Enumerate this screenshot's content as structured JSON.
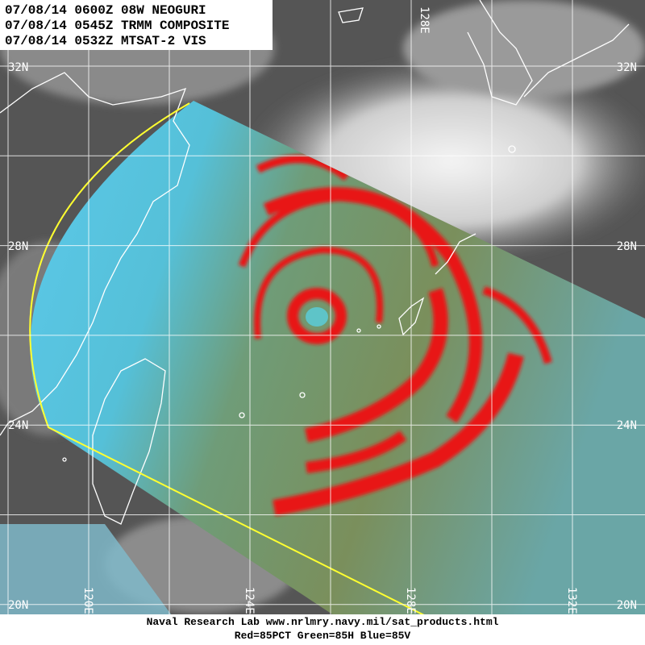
{
  "header": {
    "lines": [
      "07/08/14 0600Z 08W NEOGURI",
      "07/08/14 0545Z TRMM COMPOSITE",
      "07/08/14 0532Z MTSAT-2 VIS"
    ]
  },
  "latitude_labels": {
    "left": [
      "32N",
      "28N",
      "24N",
      "20N"
    ],
    "right": [
      "32N",
      "28N",
      "24N",
      "20N"
    ]
  },
  "longitude_labels": {
    "top": [
      "128E"
    ],
    "bottom": [
      "120E",
      "124E",
      "128E",
      "132E"
    ]
  },
  "footer": {
    "lines": [
      "Naval Research Lab  www.nrlmry.navy.mil/sat_products.html",
      "Red=85PCT  Green=85H  Blue=85V"
    ]
  }
}
